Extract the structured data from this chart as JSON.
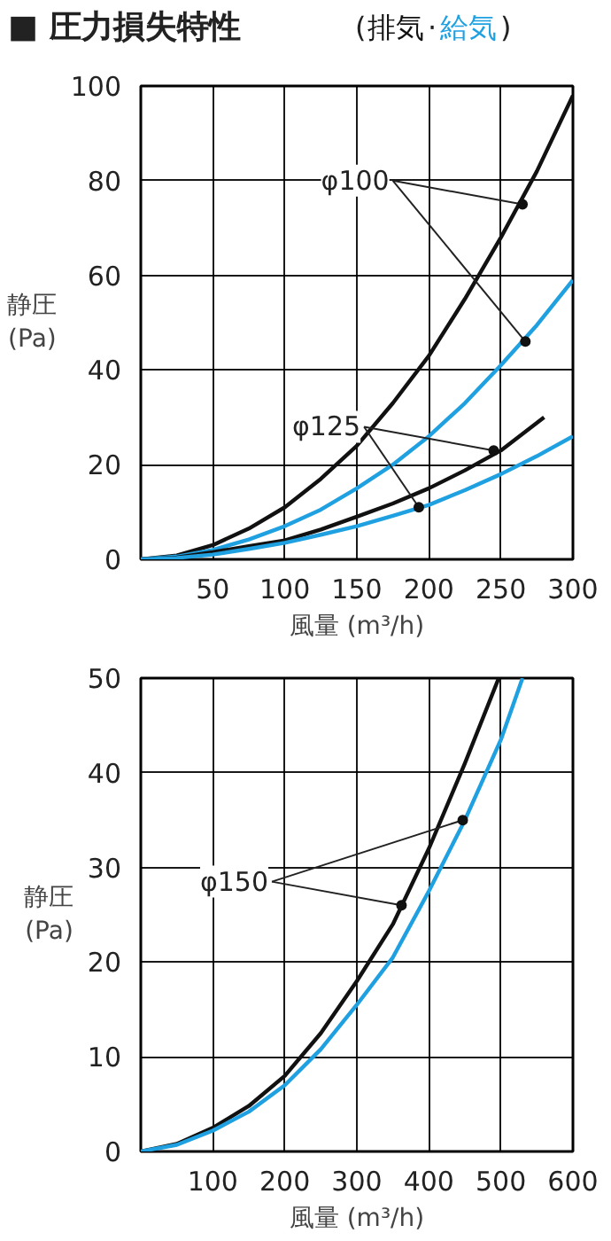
{
  "chart_data": [
    {
      "type": "line",
      "title": "■ 圧力損失特性",
      "xlabel": "風量 (m³/h)",
      "ylabel": "静圧\n(Pa)",
      "xlim": [
        0,
        300
      ],
      "ylim": [
        0,
        100
      ],
      "xticks": [
        50,
        100,
        150,
        200,
        250,
        300
      ],
      "yticks": [
        0,
        20,
        40,
        60,
        80,
        100
      ],
      "grid": true,
      "marker": "none",
      "line_style": "solid",
      "series": [
        {
          "name": "排気",
          "color": "#111111",
          "x": [
            0,
            25,
            50,
            75,
            100,
            125,
            150,
            175,
            200,
            225,
            250,
            275,
            300
          ],
          "values": [
            0,
            0.8,
            3,
            6.5,
            11,
            17,
            24,
            33,
            43,
            55,
            68,
            82,
            98
          ]
        },
        {
          "name": "給気",
          "color": "#1fa0e0",
          "x": [
            0,
            25,
            50,
            75,
            100,
            125,
            150,
            175,
            200,
            225,
            250,
            275,
            300
          ],
          "values": [
            0,
            0.6,
            2,
            4.2,
            7,
            10.5,
            15,
            20,
            26,
            33,
            41,
            49.5,
            59
          ]
        },
        {
          "color": "#111111",
          "x": [
            0,
            25,
            50,
            75,
            100,
            125,
            150,
            175,
            200,
            225,
            250,
            280
          ],
          "values": [
            0,
            0.4,
            1.5,
            2.8,
            4,
            6.3,
            9,
            11.8,
            15,
            18.8,
            23,
            30
          ]
        },
        {
          "color": "#1fa0e0",
          "x": [
            0,
            25,
            50,
            75,
            100,
            125,
            150,
            175,
            200,
            225,
            250,
            275,
            300
          ],
          "values": [
            0,
            0.3,
            1,
            2.2,
            3.5,
            5.2,
            7,
            9.2,
            11.5,
            14.6,
            18,
            21.8,
            26
          ]
        },
        {
          "type": "scatter",
          "marker": "circle",
          "color": "#111111",
          "x": [
            265,
            267
          ],
          "values": [
            75,
            46
          ]
        },
        {
          "type": "scatter",
          "marker": "circle",
          "color": "#111111",
          "x": [
            245,
            193
          ],
          "values": [
            23,
            11
          ]
        }
      ],
      "annotations": [
        "(",
        "·",
        ")",
        {
          "text": "φ100",
          "x": 265,
          "y": 75
        },
        {
          "text": "φ125",
          "x": 245,
          "y": 23
        }
      ]
    },
    {
      "type": "line",
      "xlabel": "風量 (m³/h)",
      "ylabel": "静圧\n(Pa)",
      "xlim": [
        0,
        600
      ],
      "ylim": [
        0,
        50
      ],
      "xticks": [
        100,
        200,
        300,
        400,
        500,
        600
      ],
      "yticks": [
        0,
        10,
        20,
        30,
        40,
        50
      ],
      "grid": true,
      "marker": "none",
      "line_style": "solid",
      "series": [
        {
          "color": "#111111",
          "x": [
            0,
            50,
            100,
            150,
            200,
            250,
            300,
            350,
            400,
            450,
            497
          ],
          "values": [
            0,
            0.8,
            2.5,
            4.8,
            8,
            12.5,
            18,
            24,
            32,
            41,
            50
          ]
        },
        {
          "color": "#1fa0e0",
          "x": [
            0,
            50,
            100,
            150,
            200,
            250,
            300,
            350,
            400,
            450,
            500,
            530
          ],
          "values": [
            0,
            0.7,
            2.2,
            4.2,
            7,
            10.8,
            15.5,
            20.5,
            27.5,
            35,
            43.5,
            50
          ]
        },
        {
          "type": "scatter",
          "marker": "circle",
          "color": "#111111",
          "x": [
            362,
            447
          ],
          "values": [
            26,
            35
          ]
        }
      ],
      "annotations": [
        {
          "text": "φ150",
          "x": 362,
          "y": 26
        }
      ]
    }
  ]
}
